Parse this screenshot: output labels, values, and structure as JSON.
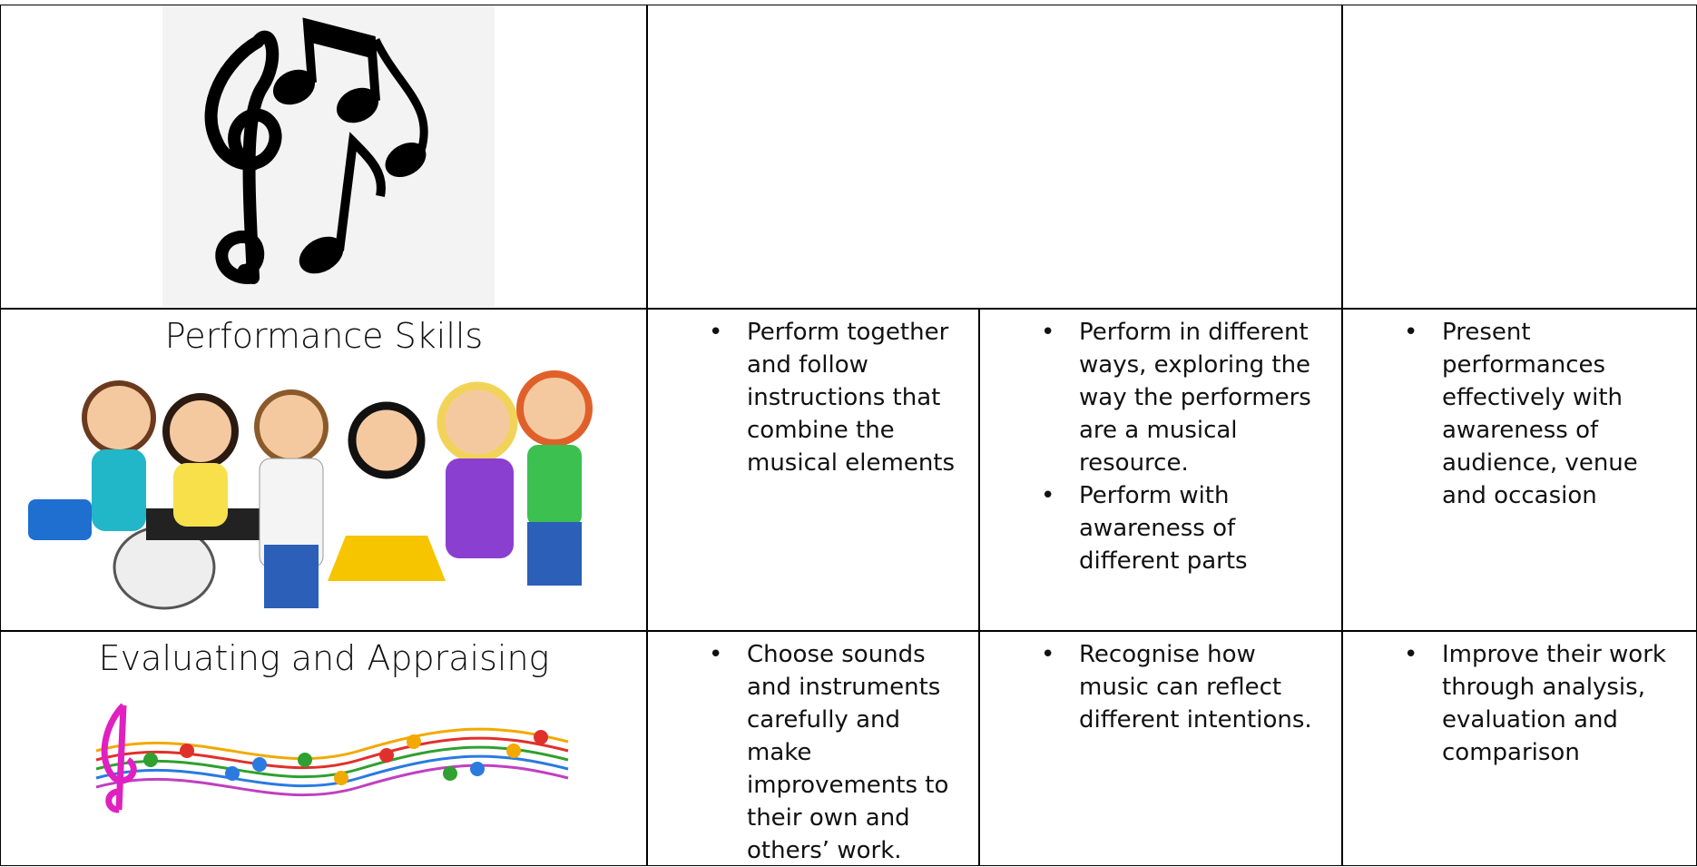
{
  "rows": [
    {
      "label": "Performance Skills",
      "cells": [
        [
          "Perform together and follow instructions that combine the musical elements"
        ],
        [
          "Perform in different ways, exploring the way the performers are a musical resource.",
          "Perform with awareness of different parts"
        ],
        [
          "Present performances effectively with awareness of audience, venue and occasion"
        ]
      ]
    },
    {
      "label": "Evaluating and Appraising",
      "cells": [
        [
          "Choose sounds and instruments carefully and make improvements to their own and others’ work."
        ],
        [
          "Recognise how music can reflect different intentions."
        ],
        [
          "Improve their work through analysis, evaluation and comparison"
        ]
      ]
    }
  ]
}
